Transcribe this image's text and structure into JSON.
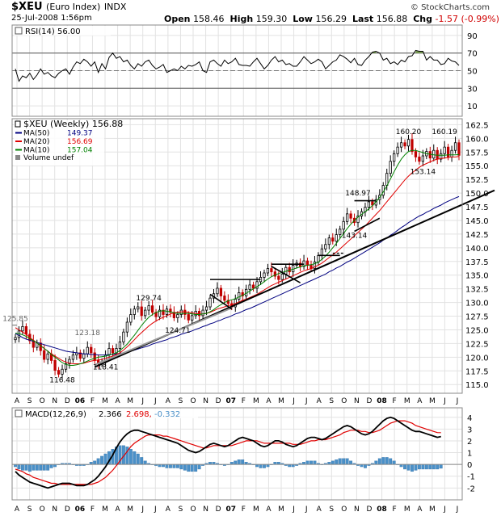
{
  "header": {
    "symbol": "$XEU",
    "name": "(Euro Index)",
    "exchange": "INDX",
    "datetime": "25-Jul-2008 1:56pm",
    "copyright": "© StockCharts.com",
    "open_label": "Open",
    "open": "158.46",
    "high_label": "High",
    "high": "159.30",
    "low_label": "Low",
    "low": "156.29",
    "last_label": "Last",
    "last": "156.88",
    "chg_label": "Chg",
    "chg": "-1.57 (-0.99%)"
  },
  "colors": {
    "ma50": "#000080",
    "ma20": "#e00000",
    "ma10": "#008000",
    "up": "#000000",
    "down": "#c00000",
    "macd": "#000000",
    "signal": "#e00000",
    "hist": "#4a90c8",
    "rsi": "#000000",
    "rsi_fill": "#6a9a3a"
  },
  "chart_data": [
    {
      "type": "line",
      "panel": "RSI",
      "legend": "RSI(14) 56.00",
      "y_ticks": [
        "90",
        "70",
        "50",
        "30",
        "10"
      ],
      "ylim": [
        0,
        100
      ],
      "reference_lines": [
        70,
        30
      ],
      "series": [
        {
          "name": "RSI(14)",
          "values": [
            52,
            38,
            44,
            42,
            47,
            40,
            45,
            52,
            46,
            48,
            44,
            42,
            47,
            50,
            52,
            46,
            54,
            60,
            58,
            63,
            60,
            55,
            60,
            48,
            58,
            52,
            65,
            70,
            64,
            66,
            60,
            62,
            56,
            52,
            58,
            55,
            60,
            62,
            56,
            52,
            54,
            57,
            48,
            50,
            52,
            50,
            55,
            52,
            56,
            55,
            57,
            60,
            50,
            48,
            60,
            62,
            58,
            55,
            62,
            58,
            60,
            64,
            57,
            56,
            56,
            55,
            60,
            64,
            58,
            52,
            56,
            62,
            66,
            60,
            62,
            57,
            58,
            55,
            55,
            60,
            66,
            62,
            58,
            60,
            63,
            60,
            52,
            56,
            60,
            62,
            68,
            66,
            63,
            59,
            64,
            57,
            56,
            62,
            66,
            71,
            72,
            70,
            62,
            64,
            58,
            60,
            57,
            62,
            60,
            66,
            67,
            73,
            72,
            72,
            62,
            66,
            62,
            62,
            57,
            58,
            64,
            61,
            60,
            56
          ]
        }
      ]
    },
    {
      "type": "candlestick",
      "panel": "Price",
      "legend": [
        "$XEU (Weekly) 156.88",
        "MA(50) 149.37",
        "MA(20) 156.69",
        "MA(10) 157.04",
        "Volume undef"
      ],
      "y_ticks": [
        "162.5",
        "160.0",
        "157.5",
        "155.0",
        "152.5",
        "150.0",
        "147.5",
        "145.0",
        "142.5",
        "140.0",
        "137.5",
        "135.0",
        "132.5",
        "130.0",
        "127.5",
        "125.0",
        "122.5",
        "120.0",
        "117.5",
        "115.0"
      ],
      "ylim": [
        114,
        163
      ],
      "x_ticks": [
        "A",
        "S",
        "O",
        "N",
        "D",
        "06",
        "F",
        "M",
        "A",
        "M",
        "J",
        "J",
        "A",
        "S",
        "O",
        "N",
        "D",
        "07",
        "F",
        "M",
        "A",
        "M",
        "J",
        "J",
        "A",
        "S",
        "O",
        "N",
        "D",
        "08",
        "F",
        "M",
        "A",
        "M",
        "J",
        "J"
      ],
      "annotations": [
        "125.85",
        "123.18",
        "116.48",
        "118.41",
        "129.74",
        "124.71",
        "148.97",
        "143.14",
        "160.20",
        "160.19",
        "153.14"
      ],
      "close": [
        123.6,
        124.8,
        125.6,
        124.2,
        123.0,
        121.8,
        122.6,
        121.2,
        119.6,
        120.6,
        119.4,
        117.6,
        116.9,
        117.8,
        118.8,
        119.6,
        120.4,
        120.8,
        119.8,
        120.6,
        121.8,
        120.8,
        119.4,
        118.8,
        119.2,
        120.4,
        121.6,
        120.8,
        121.6,
        122.8,
        124.6,
        126.4,
        127.8,
        128.8,
        129.2,
        127.6,
        128.6,
        129.4,
        128.2,
        127.4,
        128.6,
        127.8,
        128.8,
        128.2,
        127.2,
        127.8,
        128.6,
        127.8,
        126.8,
        127.6,
        128.4,
        127.6,
        128.6,
        129.2,
        130.8,
        131.6,
        132.6,
        131.2,
        130.4,
        129.8,
        129.2,
        130.6,
        131.8,
        131.2,
        132.4,
        133.2,
        132.6,
        133.8,
        134.6,
        135.4,
        136.2,
        135.6,
        134.8,
        134.2,
        135.2,
        136.4,
        135.6,
        136.8,
        137.2,
        136.6,
        137.6,
        136.8,
        136.2,
        137.4,
        138.6,
        139.8,
        140.6,
        141.8,
        141.2,
        142.4,
        143.4,
        144.8,
        146.2,
        145.4,
        144.6,
        145.8,
        146.6,
        147.4,
        148.4,
        147.8,
        148.8,
        149.6,
        151.4,
        153.6,
        155.8,
        157.2,
        158.4,
        159.2,
        158.6,
        159.8,
        157.6,
        156.6,
        155.8,
        156.8,
        157.6,
        156.4,
        157.8,
        156.2,
        157.2,
        158.4,
        156.6,
        157.8,
        159.2,
        156.9
      ],
      "series": [
        {
          "name": "MA(50)",
          "values": [
            124.3,
            124.0,
            123.6,
            123.3,
            123.1,
            122.9,
            122.7,
            122.5,
            122.3,
            122.1,
            121.9,
            121.7,
            121.5,
            121.3,
            121.1,
            121.0,
            120.9,
            120.8,
            120.7,
            120.6,
            120.6,
            120.5,
            120.5,
            120.4,
            120.4,
            120.4,
            120.5,
            120.5,
            120.6,
            120.7,
            120.8,
            120.9,
            121.1,
            121.3,
            121.5,
            121.7,
            121.9,
            122.1,
            122.4,
            122.6,
            122.8,
            123.0,
            123.2,
            123.5,
            123.7,
            123.9,
            124.2,
            124.4,
            124.6,
            124.8,
            125.1,
            125.3,
            125.6,
            125.8,
            126.1,
            126.3,
            126.6,
            126.8,
            127.1,
            127.3,
            127.6,
            127.9,
            128.1,
            128.4,
            128.7,
            128.9,
            129.2,
            129.5,
            129.8,
            130.1,
            130.4,
            130.7,
            131.0,
            131.3,
            131.6,
            131.9,
            132.2,
            132.5,
            132.8,
            133.1,
            133.4,
            133.7,
            134.0,
            134.3,
            134.6,
            134.9,
            135.2,
            135.6,
            135.9,
            136.3,
            136.6,
            137.0,
            137.4,
            137.7,
            138.1,
            138.5,
            138.9,
            139.3,
            139.7,
            140.1,
            140.5,
            140.9,
            141.4,
            141.8,
            142.3,
            142.7,
            143.2,
            143.7,
            144.1,
            144.6,
            145.0,
            145.4,
            145.8,
            146.1,
            146.5,
            146.8,
            147.2,
            147.5,
            147.8,
            148.2,
            148.5,
            148.8,
            149.1,
            149.37
          ]
        },
        {
          "name": "MA(20)",
          "values": [
            125.4,
            125.0,
            124.6,
            124.2,
            123.6,
            123.1,
            122.6,
            122.1,
            121.6,
            121.1,
            120.6,
            120.2,
            119.8,
            119.4,
            119.1,
            118.9,
            118.8,
            118.8,
            118.8,
            118.9,
            119.1,
            119.3,
            119.4,
            119.5,
            119.6,
            119.8,
            120.0,
            120.2,
            120.5,
            120.8,
            121.3,
            121.9,
            122.5,
            123.2,
            123.9,
            124.5,
            125.1,
            125.7,
            126.2,
            126.6,
            127.0,
            127.3,
            127.6,
            127.9,
            128.1,
            128.2,
            128.3,
            128.3,
            128.2,
            128.1,
            128.0,
            127.9,
            127.9,
            128.0,
            128.2,
            128.5,
            128.8,
            129.0,
            129.2,
            129.4,
            129.6,
            129.8,
            130.1,
            130.4,
            130.6,
            130.9,
            131.2,
            131.5,
            131.9,
            132.3,
            132.7,
            133.1,
            133.4,
            133.7,
            134.0,
            134.3,
            134.6,
            134.9,
            135.2,
            135.5,
            135.8,
            136.0,
            136.2,
            136.5,
            136.8,
            137.2,
            137.7,
            138.2,
            138.7,
            139.2,
            139.8,
            140.4,
            141.0,
            141.6,
            142.2,
            142.8,
            143.4,
            144.0,
            144.7,
            145.4,
            146.1,
            146.8,
            147.6,
            148.4,
            149.2,
            150.0,
            150.8,
            151.6,
            152.4,
            153.1,
            153.7,
            154.2,
            154.7,
            155.1,
            155.4,
            155.7,
            156.0,
            156.2,
            156.3,
            156.4,
            156.5,
            156.6,
            156.6,
            156.69
          ]
        },
        {
          "name": "MA(10)",
          "values": [
            124.4,
            124.3,
            124.1,
            123.8,
            123.4,
            123.0,
            122.6,
            122.1,
            121.6,
            121.1,
            120.5,
            120.0,
            119.5,
            119.0,
            118.7,
            118.5,
            118.5,
            118.6,
            118.8,
            119.0,
            119.3,
            119.6,
            119.8,
            120.0,
            120.1,
            120.2,
            120.4,
            120.6,
            120.8,
            121.2,
            121.8,
            122.4,
            123.2,
            124.0,
            124.9,
            125.8,
            126.6,
            127.3,
            127.8,
            128.2,
            128.4,
            128.5,
            128.4,
            128.3,
            128.1,
            128.0,
            128.0,
            128.0,
            128.0,
            127.9,
            127.8,
            127.8,
            127.9,
            128.0,
            128.3,
            128.7,
            129.2,
            129.6,
            130.0,
            130.3,
            130.5,
            130.7,
            131.0,
            131.3,
            131.7,
            132.1,
            132.5,
            132.9,
            133.3,
            133.8,
            134.3,
            134.7,
            135.0,
            135.3,
            135.5,
            135.7,
            135.9,
            136.1,
            136.3,
            136.5,
            136.7,
            136.8,
            136.9,
            137.1,
            137.4,
            137.9,
            138.5,
            139.2,
            140.0,
            140.8,
            141.7,
            142.6,
            143.5,
            144.3,
            145.0,
            145.6,
            146.1,
            146.6,
            147.1,
            147.7,
            148.4,
            149.2,
            150.2,
            151.3,
            152.6,
            153.9,
            155.1,
            156.2,
            157.0,
            157.6,
            157.8,
            157.8,
            157.6,
            157.4,
            157.2,
            157.1,
            157.0,
            156.9,
            156.9,
            156.9,
            157.0,
            157.0,
            157.0,
            157.04
          ]
        }
      ]
    },
    {
      "type": "line",
      "panel": "MACD",
      "legend": [
        "MACD(12,26,9)",
        "2.366",
        "2.698",
        "-0.332"
      ],
      "y_ticks": [
        "4",
        "3",
        "2",
        "1",
        "0",
        "-1",
        "-2"
      ],
      "ylim": [
        -2.8,
        4.6
      ],
      "series": [
        {
          "name": "MACD(12,26,9)",
          "values": [
            -0.6,
            -0.9,
            -1.1,
            -1.3,
            -1.5,
            -1.6,
            -1.7,
            -1.8,
            -1.9,
            -2.0,
            -1.9,
            -1.8,
            -1.7,
            -1.6,
            -1.6,
            -1.6,
            -1.7,
            -1.8,
            -1.8,
            -1.8,
            -1.7,
            -1.5,
            -1.3,
            -1.0,
            -0.6,
            -0.2,
            0.3,
            0.8,
            1.4,
            1.9,
            2.3,
            2.6,
            2.8,
            2.9,
            2.9,
            2.8,
            2.7,
            2.6,
            2.5,
            2.4,
            2.3,
            2.2,
            2.1,
            2.0,
            1.9,
            1.8,
            1.6,
            1.4,
            1.2,
            1.1,
            1.0,
            1.1,
            1.3,
            1.5,
            1.7,
            1.8,
            1.7,
            1.6,
            1.5,
            1.6,
            1.8,
            2.0,
            2.2,
            2.3,
            2.2,
            2.1,
            2.0,
            1.8,
            1.6,
            1.5,
            1.6,
            1.8,
            2.0,
            2.0,
            1.9,
            1.7,
            1.6,
            1.5,
            1.6,
            1.8,
            2.0,
            2.2,
            2.3,
            2.3,
            2.2,
            2.1,
            2.2,
            2.4,
            2.6,
            2.8,
            3.0,
            3.2,
            3.3,
            3.2,
            3.0,
            2.8,
            2.6,
            2.5,
            2.6,
            2.8,
            3.1,
            3.4,
            3.7,
            3.9,
            4.0,
            3.9,
            3.7,
            3.5,
            3.3,
            3.1,
            2.9,
            2.8,
            2.8,
            2.7,
            2.6,
            2.5,
            2.4,
            2.3,
            2.366
          ]
        },
        {
          "name": "Signal",
          "values": [
            -0.4,
            -0.5,
            -0.6,
            -0.8,
            -0.9,
            -1.1,
            -1.2,
            -1.3,
            -1.4,
            -1.5,
            -1.6,
            -1.6,
            -1.7,
            -1.7,
            -1.7,
            -1.7,
            -1.7,
            -1.7,
            -1.7,
            -1.7,
            -1.7,
            -1.7,
            -1.6,
            -1.5,
            -1.3,
            -1.1,
            -0.8,
            -0.5,
            -0.1,
            0.3,
            0.7,
            1.1,
            1.5,
            1.8,
            2.0,
            2.2,
            2.4,
            2.5,
            2.5,
            2.5,
            2.5,
            2.4,
            2.4,
            2.3,
            2.2,
            2.1,
            2.0,
            1.9,
            1.8,
            1.7,
            1.6,
            1.5,
            1.4,
            1.4,
            1.5,
            1.6,
            1.6,
            1.6,
            1.6,
            1.6,
            1.6,
            1.7,
            1.8,
            1.9,
            2.0,
            2.0,
            2.0,
            2.0,
            1.9,
            1.8,
            1.8,
            1.8,
            1.8,
            1.8,
            1.8,
            1.8,
            1.8,
            1.7,
            1.7,
            1.7,
            1.8,
            1.9,
            2.0,
            2.0,
            2.1,
            2.1,
            2.1,
            2.2,
            2.3,
            2.4,
            2.5,
            2.7,
            2.8,
            2.9,
            2.9,
            2.9,
            2.8,
            2.8,
            2.7,
            2.7,
            2.8,
            2.9,
            3.1,
            3.3,
            3.5,
            3.6,
            3.7,
            3.7,
            3.7,
            3.6,
            3.5,
            3.3,
            3.2,
            3.1,
            3.0,
            2.9,
            2.8,
            2.7,
            2.698
          ]
        }
      ],
      "histogram": [
        -0.2,
        -0.4,
        -0.5,
        -0.5,
        -0.6,
        -0.5,
        -0.5,
        -0.5,
        -0.5,
        -0.5,
        -0.3,
        -0.2,
        0.0,
        0.1,
        0.1,
        0.1,
        0.0,
        -0.1,
        -0.1,
        -0.1,
        0.0,
        0.2,
        0.3,
        0.5,
        0.7,
        0.9,
        1.1,
        1.3,
        1.5,
        1.6,
        1.6,
        1.5,
        1.3,
        1.1,
        0.9,
        0.6,
        0.3,
        0.1,
        0.0,
        -0.1,
        -0.2,
        -0.2,
        -0.3,
        -0.3,
        -0.3,
        -0.3,
        -0.4,
        -0.5,
        -0.6,
        -0.6,
        -0.6,
        -0.4,
        -0.1,
        0.1,
        0.2,
        0.2,
        0.1,
        0.0,
        -0.1,
        0.0,
        0.2,
        0.3,
        0.4,
        0.4,
        0.2,
        0.1,
        0.0,
        -0.2,
        -0.3,
        -0.3,
        -0.2,
        0.0,
        0.2,
        0.2,
        0.1,
        -0.1,
        -0.2,
        -0.2,
        -0.1,
        0.1,
        0.2,
        0.3,
        0.3,
        0.3,
        0.1,
        0.0,
        0.1,
        0.2,
        0.3,
        0.4,
        0.5,
        0.5,
        0.5,
        0.3,
        0.1,
        -0.1,
        -0.2,
        -0.3,
        -0.1,
        0.1,
        0.3,
        0.5,
        0.6,
        0.6,
        0.5,
        0.3,
        0.0,
        -0.2,
        -0.4,
        -0.5,
        -0.6,
        -0.5,
        -0.4,
        -0.4,
        -0.4,
        -0.4,
        -0.4,
        -0.4,
        -0.332
      ]
    }
  ]
}
